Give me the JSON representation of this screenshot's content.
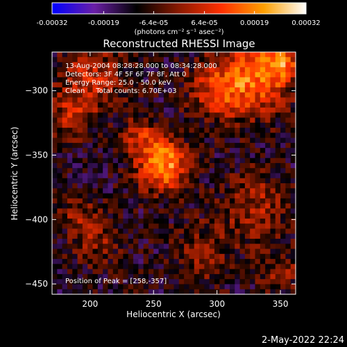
{
  "chart_data": {
    "type": "heatmap",
    "title": "Reconstructed RHESSI Image",
    "xlabel": "Heliocentric X (arcsec)",
    "ylabel": "Heliocentric Y (arcsec)",
    "xlim": [
      170,
      362
    ],
    "ylim": [
      -458,
      -270
    ],
    "xticks": [
      200,
      250,
      300,
      350
    ],
    "yticks": [
      -300,
      -350,
      -400,
      -450
    ],
    "colorbar": {
      "min": -0.00032,
      "max": 0.00032,
      "ticks": [
        "-0.00032",
        "-0.00019",
        "-6.4e-05",
        "6.4e-05",
        "0.00019",
        "0.00032"
      ],
      "tick_values": [
        -0.00032,
        -0.00019,
        -6.4e-05,
        6.4e-05,
        0.00019,
        0.00032
      ],
      "units": "(photons cm⁻² s⁻¹ asec⁻²)",
      "colors": [
        "#0000ff",
        "#6a1fa6",
        "#000000",
        "#8b1a00",
        "#ff3000",
        "#ffa000",
        "#ffffff"
      ]
    },
    "info_lines": [
      "13-Aug-2004 08:28:28.000 to 08:34:28.000",
      "Detectors: 3F 4F 5F 6F 7F 8F, Att 0",
      "Energy Range: 25.0 - 50.0 keV",
      "Clean     Total counts: 6.70E+03"
    ],
    "peak_label": "Position of Peak = [258,-357]",
    "peak": [
      258,
      -357
    ],
    "sources": [
      {
        "x": 257,
        "y": -357,
        "sigma": 14,
        "amp": 0.00032
      },
      {
        "x": 240,
        "y": -335,
        "sigma": 10,
        "amp": 0.00014
      },
      {
        "x": 330,
        "y": -290,
        "sigma": 20,
        "amp": 0.00024
      },
      {
        "x": 300,
        "y": -300,
        "sigma": 16,
        "amp": 0.00016
      },
      {
        "x": 350,
        "y": -278,
        "sigma": 10,
        "amp": 0.0002
      },
      {
        "x": 200,
        "y": -290,
        "sigma": 18,
        "amp": 0.00016
      },
      {
        "x": 185,
        "y": -320,
        "sigma": 12,
        "amp": 0.00012
      },
      {
        "x": 330,
        "y": -390,
        "sigma": 18,
        "amp": 0.00013
      },
      {
        "x": 205,
        "y": -415,
        "sigma": 14,
        "amp": 0.0001
      },
      {
        "x": 290,
        "y": -425,
        "sigma": 16,
        "amp": 0.0001
      },
      {
        "x": 350,
        "y": -440,
        "sigma": 12,
        "amp": 0.0001
      },
      {
        "x": 190,
        "y": -395,
        "sigma": 10,
        "amp": 9e-05
      }
    ]
  },
  "timestamp": "2-May-2022 22:24"
}
